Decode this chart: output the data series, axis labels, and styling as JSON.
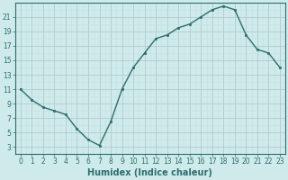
{
  "x": [
    0,
    1,
    2,
    3,
    4,
    5,
    6,
    7,
    8,
    9,
    10,
    11,
    12,
    13,
    14,
    15,
    16,
    17,
    18,
    19,
    20,
    21,
    22,
    23
  ],
  "y": [
    11,
    9.5,
    8.5,
    8,
    7.5,
    5.5,
    4,
    3.2,
    6.5,
    11,
    14,
    16,
    18,
    18.5,
    19.5,
    20,
    21,
    22,
    22.5,
    22,
    18.5,
    16.5,
    16,
    14
  ],
  "line_color": "#2d6e6e",
  "marker": "s",
  "marker_size": 2.0,
  "bg_color": "#ceeaea",
  "grid_major_color": "#b0cccc",
  "grid_minor_color": "#c5e0e0",
  "xlabel": "Humidex (Indice chaleur)",
  "xlim": [
    -0.5,
    23.5
  ],
  "ylim": [
    2,
    22.8
  ],
  "yticks": [
    3,
    5,
    7,
    9,
    11,
    13,
    15,
    17,
    19,
    21
  ],
  "xticks": [
    0,
    1,
    2,
    3,
    4,
    5,
    6,
    7,
    8,
    9,
    10,
    11,
    12,
    13,
    14,
    15,
    16,
    17,
    18,
    19,
    20,
    21,
    22,
    23
  ],
  "tick_color": "#2d6e6e",
  "label_fontsize": 7,
  "tick_fontsize": 5.5,
  "line_width": 1.0
}
